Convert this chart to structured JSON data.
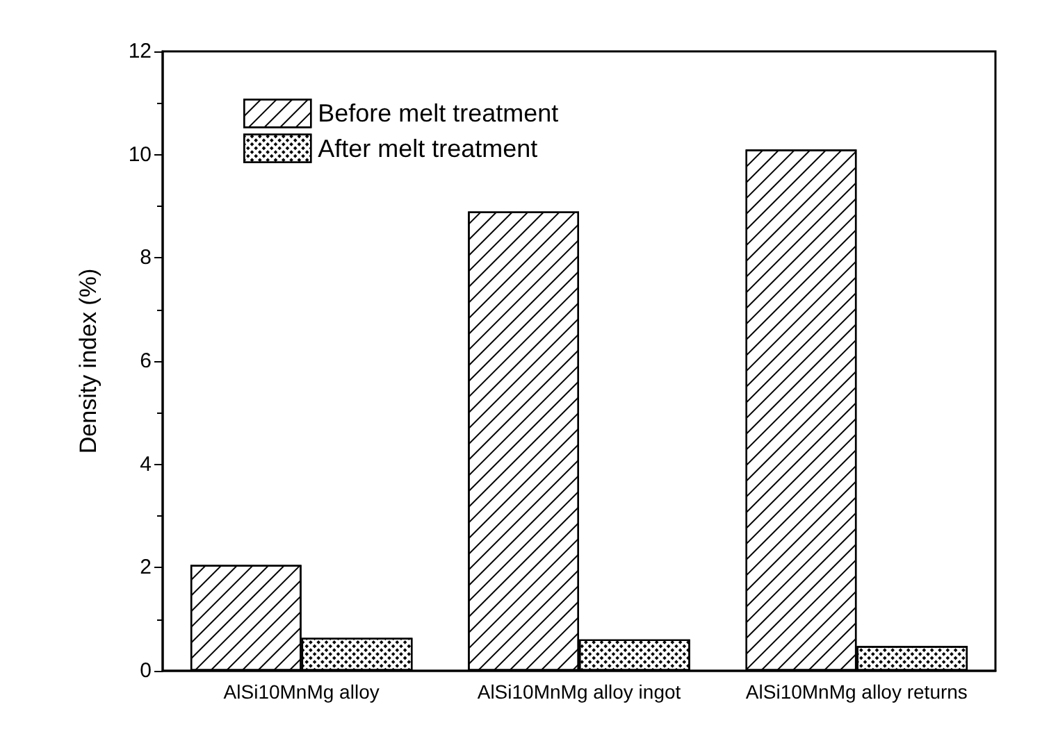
{
  "chart_data": {
    "type": "bar",
    "ylabel": "Density index (%)",
    "categories": [
      "AlSi10MnMg alloy",
      "AlSi10MnMg alloy ingot",
      "AlSi10MnMg alloy returns"
    ],
    "series": [
      {
        "name": "Before melt treatment",
        "color": "#ffffff",
        "values": [
          2.05,
          8.9,
          10.1
        ]
      },
      {
        "name": "After melt treatment",
        "color": "#ffffff",
        "values": [
          0.64,
          0.61,
          0.48
        ]
      }
    ],
    "ylim": [
      0,
      12
    ],
    "yticks": [
      0,
      2,
      4,
      6,
      8,
      10,
      12
    ],
    "grid": false,
    "legend": "top left"
  }
}
